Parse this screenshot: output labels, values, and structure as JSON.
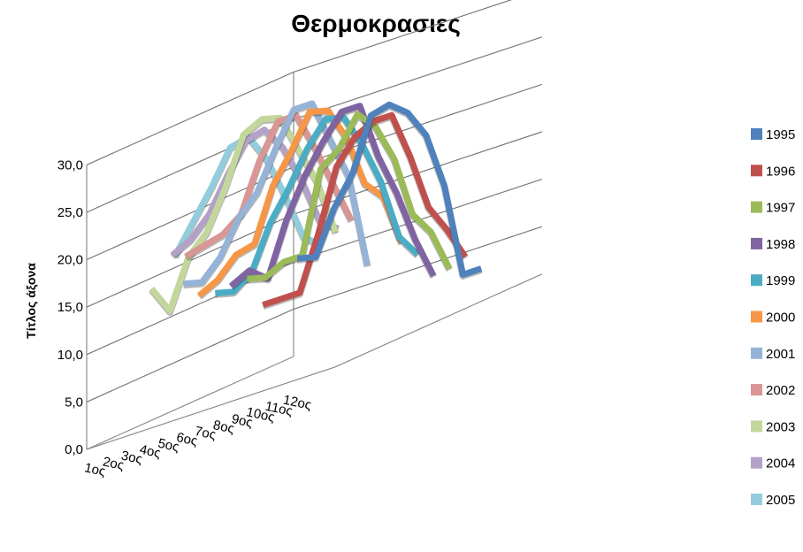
{
  "chart_data": {
    "type": "line",
    "subtype": "3d-line",
    "title": "Θερμοκρασιες",
    "xlabel": "",
    "ylabel": "Τίτλος άξονα",
    "ylim": [
      0,
      30
    ],
    "yticks": [
      "0,0",
      "5,0",
      "10,0",
      "15,0",
      "20,0",
      "25,0",
      "30,0"
    ],
    "categories": [
      "1ος",
      "2ος",
      "3ος",
      "4ος",
      "5ος",
      "6ος",
      "7ος",
      "8ος",
      "9ος",
      "10ος",
      "11ος",
      "12ος"
    ],
    "grid": true,
    "legend_position": "right",
    "series": [
      {
        "name": "1995",
        "color": "#4f81bd",
        "values": [
          null,
          10.5,
          10.0,
          14.5,
          17.5,
          23.0,
          23.5,
          22.0,
          19.0,
          13.0,
          3.0,
          3.0
        ]
      },
      {
        "name": "1996",
        "color": "#c0504d",
        "values": [
          7.0,
          7.0,
          7.0,
          12.5,
          19.0,
          21.5,
          22.5,
          22.5,
          17.5,
          11.5,
          8.5,
          5.0
        ]
      },
      {
        "name": "1997",
        "color": "#9bbb59",
        "values": [
          10.5,
          10.0,
          11.0,
          11.0,
          19.5,
          21.0,
          24.0,
          22.0,
          18.0,
          11.5,
          9.0,
          4.5
        ]
      },
      {
        "name": "1998",
        "color": "#8064a2",
        "values": [
          10.5,
          11.5,
          10.0,
          15.5,
          19.5,
          22.5,
          25.0,
          25.0,
          19.0,
          14.5,
          9.0,
          4.5
        ]
      },
      {
        "name": "1999",
        "color": "#4bacc6",
        "values": [
          10.5,
          10.0,
          11.5,
          16.0,
          19.0,
          22.5,
          25.0,
          24.5,
          21.0,
          16.5,
          10.0,
          7.5
        ]
      },
      {
        "name": "2000",
        "color": "#f79646",
        "values": [
          11.0,
          12.0,
          14.0,
          14.5,
          20.0,
          23.0,
          26.5,
          26.0,
          22.5,
          17.0,
          15.0,
          9.5
        ]
      },
      {
        "name": "2001",
        "color": "#95b3d7",
        "values": [
          13.0,
          12.5,
          14.5,
          18.0,
          20.0,
          24.0,
          27.5,
          27.5,
          23.0,
          18.5,
          8.5,
          null
        ]
      },
      {
        "name": "2002",
        "color": "#d99694",
        "values": [
          null,
          16.0,
          16.5,
          17.0,
          18.5,
          23.5,
          27.0,
          27.0,
          23.0,
          18.5,
          14.0,
          null
        ]
      },
      {
        "name": "2003",
        "color": "#c3d69b",
        "values": [
          14.0,
          11.0,
          16.0,
          18.0,
          22.0,
          27.0,
          28.0,
          27.5,
          23.5,
          19.5,
          13.5,
          null
        ]
      },
      {
        "name": "2004",
        "color": "#b3a2c7",
        "values": [
          null,
          null,
          17.0,
          18.0,
          20.0,
          23.5,
          26.5,
          27.0,
          24.5,
          20.5,
          15.5,
          14.0
        ]
      },
      {
        "name": "2005",
        "color": "#93cddd",
        "values": [
          null,
          null,
          null,
          17.0,
          20.0,
          23.0,
          26.5,
          27.0,
          24.0,
          19.5,
          14.5,
          13.0
        ]
      }
    ]
  }
}
